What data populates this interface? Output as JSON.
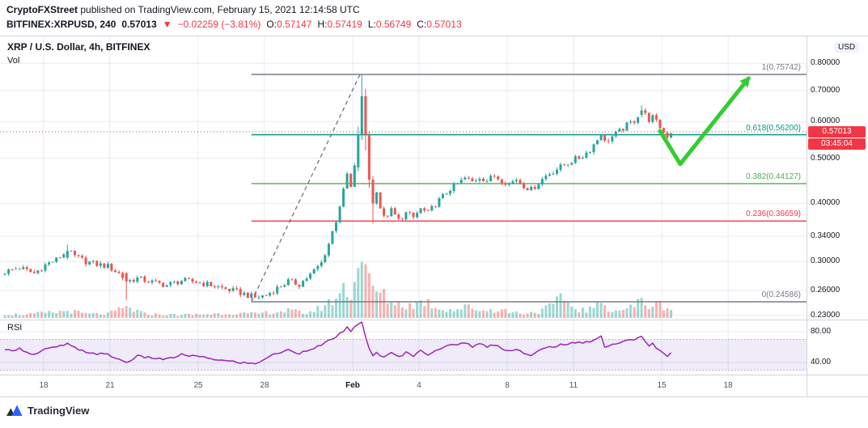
{
  "header": {
    "publisher": "CryptoFXStreet",
    "publish_info": " published on TradingView.com, February 15, 2021 12:14:58 UTC",
    "symbol": "BITFINEX:XRPUSD, 240",
    "last_price": "0.57013",
    "change_icon": "▼",
    "change": "−0.02259 (−3.81%)",
    "ohlc": [
      {
        "label": "O:",
        "value": "0.57147"
      },
      {
        "label": "H:",
        "value": "0.57419"
      },
      {
        "label": "L:",
        "value": "0.56749"
      },
      {
        "label": "C:",
        "value": "0.57013"
      }
    ]
  },
  "chart": {
    "title": "XRP / U.S. Dollar, 4h, BITFINEX",
    "vol_label": "Vol",
    "rsi_label": "RSI",
    "currency_label": "USD",
    "price_badge": "0.57013",
    "countdown": "03:45:04"
  },
  "footer": {
    "brand": "TradingView"
  },
  "colors": {
    "candle_up": "#26a69a",
    "candle_down": "#ef5350",
    "vol_up": "rgba(38,166,154,0.45)",
    "vol_down": "rgba(239,83,80,0.45)",
    "grid": "#e8ebf2",
    "separator": "#d1d4dc",
    "price_line": "#f23645",
    "badge_bg": "#f23645",
    "trendline": "#787b86",
    "arrow": "#32cd32",
    "rsi_line": "#9c27b0",
    "rsi_band_fill": "rgba(126,87,194,0.12)",
    "rsi_band_edge": "#d1a3e0",
    "axis_text": "#131722"
  },
  "chart_data": {
    "type": "candlestick",
    "symbol": "BITFINEX:XRPUSD",
    "interval": "4h",
    "scale": "log",
    "current_price": 0.57013,
    "y_ticks": [
      {
        "label": "0.80000",
        "value": 0.8
      },
      {
        "label": "0.70000",
        "value": 0.7
      },
      {
        "label": "0.60000",
        "value": 0.6
      },
      {
        "label": "0.50000",
        "value": 0.5
      },
      {
        "label": "0.40000",
        "value": 0.4
      },
      {
        "label": "0.34000",
        "value": 0.34
      },
      {
        "label": "0.30000",
        "value": 0.3
      },
      {
        "label": "0.26000",
        "value": 0.26
      },
      {
        "label": "0.23000",
        "value": 0.23
      }
    ],
    "x_ticks": [
      {
        "label": "18",
        "i": 10.5
      },
      {
        "label": "21",
        "i": 28.5
      },
      {
        "label": "25",
        "i": 52.5
      },
      {
        "label": "28",
        "i": 70.5
      },
      {
        "label": "Feb",
        "i": 94.5,
        "major": true
      },
      {
        "label": "4",
        "i": 112.5
      },
      {
        "label": "8",
        "i": 136.5
      },
      {
        "label": "11",
        "i": 154.5
      },
      {
        "label": "15",
        "i": 178.5
      },
      {
        "label": "18",
        "i": 196.5
      }
    ],
    "fib_levels": [
      {
        "label": "1(0.75742)",
        "value": 0.75742,
        "color": "#787b86"
      },
      {
        "label": "0.618(0.56200)",
        "value": 0.562,
        "color": "#009688"
      },
      {
        "label": "0.382(0.44127)",
        "value": 0.44127,
        "color": "#4caf50"
      },
      {
        "label": "0.236(0.36659)",
        "value": 0.36659,
        "color": "#f23645"
      },
      {
        "label": "0(0.24586)",
        "value": 0.24586,
        "color": "#787b86"
      }
    ],
    "rsi_ticks": [
      {
        "label": "80.00",
        "value": 80
      },
      {
        "label": "40.00",
        "value": 40
      }
    ],
    "rsi_band": [
      30,
      70
    ],
    "close_anchors": [
      [
        0,
        0.285
      ],
      [
        4,
        0.291
      ],
      [
        8,
        0.283
      ],
      [
        11,
        0.295
      ],
      [
        14,
        0.303
      ],
      [
        17,
        0.316
      ],
      [
        19,
        0.308
      ],
      [
        22,
        0.3
      ],
      [
        25,
        0.296
      ],
      [
        28,
        0.293
      ],
      [
        31,
        0.283
      ],
      [
        33,
        0.272
      ],
      [
        36,
        0.276
      ],
      [
        40,
        0.271
      ],
      [
        44,
        0.267
      ],
      [
        48,
        0.273
      ],
      [
        52,
        0.271
      ],
      [
        56,
        0.267
      ],
      [
        60,
        0.262
      ],
      [
        64,
        0.257
      ],
      [
        68,
        0.251
      ],
      [
        71,
        0.254
      ],
      [
        74,
        0.263
      ],
      [
        77,
        0.272
      ],
      [
        80,
        0.268
      ],
      [
        83,
        0.281
      ],
      [
        86,
        0.298
      ],
      [
        88,
        0.328
      ],
      [
        90,
        0.368
      ],
      [
        92,
        0.425
      ],
      [
        93,
        0.462
      ],
      [
        94,
        0.432
      ],
      [
        95,
        0.478
      ],
      [
        96,
        0.56
      ],
      [
        97,
        0.68
      ],
      [
        98,
        0.56
      ],
      [
        99,
        0.45
      ],
      [
        100,
        0.4
      ],
      [
        101,
        0.428
      ],
      [
        102,
        0.392
      ],
      [
        103,
        0.372
      ],
      [
        105,
        0.386
      ],
      [
        107,
        0.368
      ],
      [
        109,
        0.381
      ],
      [
        111,
        0.373
      ],
      [
        113,
        0.389
      ],
      [
        115,
        0.381
      ],
      [
        117,
        0.399
      ],
      [
        119,
        0.414
      ],
      [
        121,
        0.43
      ],
      [
        123,
        0.441
      ],
      [
        125,
        0.453
      ],
      [
        127,
        0.445
      ],
      [
        129,
        0.456
      ],
      [
        131,
        0.448
      ],
      [
        133,
        0.458
      ],
      [
        135,
        0.449
      ],
      [
        137,
        0.441
      ],
      [
        139,
        0.451
      ],
      [
        141,
        0.437
      ],
      [
        143,
        0.428
      ],
      [
        145,
        0.443
      ],
      [
        147,
        0.459
      ],
      [
        149,
        0.469
      ],
      [
        151,
        0.479
      ],
      [
        153,
        0.489
      ],
      [
        155,
        0.498
      ],
      [
        157,
        0.506
      ],
      [
        159,
        0.522
      ],
      [
        161,
        0.549
      ],
      [
        162,
        0.566
      ],
      [
        163,
        0.541
      ],
      [
        165,
        0.557
      ],
      [
        167,
        0.571
      ],
      [
        169,
        0.589
      ],
      [
        171,
        0.603
      ],
      [
        172,
        0.618
      ],
      [
        173,
        0.634
      ],
      [
        174,
        0.62
      ],
      [
        175,
        0.606
      ],
      [
        176,
        0.613
      ],
      [
        177,
        0.598
      ],
      [
        178,
        0.584
      ],
      [
        179,
        0.568
      ],
      [
        180,
        0.559
      ],
      [
        181,
        0.57
      ]
    ],
    "special_candles": {
      "17": [
        0.306,
        0.326,
        0.303,
        0.316
      ],
      "33": [
        0.283,
        0.285,
        0.248,
        0.272
      ],
      "96": [
        0.478,
        0.585,
        0.47,
        0.56
      ],
      "97": [
        0.56,
        0.75742,
        0.548,
        0.68
      ],
      "98": [
        0.68,
        0.706,
        0.52,
        0.56
      ],
      "99": [
        0.56,
        0.572,
        0.432,
        0.45
      ],
      "100": [
        0.45,
        0.458,
        0.362,
        0.4
      ],
      "173": [
        0.62,
        0.65,
        0.612,
        0.634
      ]
    },
    "volume_anchors": [
      [
        0,
        5
      ],
      [
        6,
        4
      ],
      [
        10,
        6
      ],
      [
        14,
        7
      ],
      [
        17,
        9
      ],
      [
        22,
        5
      ],
      [
        28,
        5
      ],
      [
        33,
        13
      ],
      [
        38,
        5
      ],
      [
        44,
        4
      ],
      [
        50,
        4
      ],
      [
        56,
        5
      ],
      [
        62,
        6
      ],
      [
        68,
        5
      ],
      [
        72,
        7
      ],
      [
        77,
        9
      ],
      [
        82,
        6
      ],
      [
        85,
        11
      ],
      [
        88,
        18
      ],
      [
        90,
        26
      ],
      [
        92,
        36
      ],
      [
        94,
        32
      ],
      [
        95,
        46
      ],
      [
        96,
        62
      ],
      [
        97,
        92
      ],
      [
        98,
        58
      ],
      [
        99,
        42
      ],
      [
        100,
        36
      ],
      [
        102,
        30
      ],
      [
        104,
        24
      ],
      [
        106,
        19
      ],
      [
        110,
        15
      ],
      [
        114,
        21
      ],
      [
        118,
        12
      ],
      [
        122,
        10
      ],
      [
        126,
        14
      ],
      [
        130,
        9
      ],
      [
        134,
        11
      ],
      [
        138,
        7
      ],
      [
        142,
        6
      ],
      [
        146,
        9
      ],
      [
        150,
        19
      ],
      [
        152,
        26
      ],
      [
        154,
        13
      ],
      [
        158,
        9
      ],
      [
        162,
        17
      ],
      [
        166,
        9
      ],
      [
        170,
        13
      ],
      [
        173,
        21
      ],
      [
        175,
        15
      ],
      [
        178,
        17
      ],
      [
        181,
        11
      ]
    ],
    "rsi_anchors": [
      [
        0,
        55
      ],
      [
        4,
        58
      ],
      [
        8,
        50
      ],
      [
        11,
        57
      ],
      [
        14,
        60
      ],
      [
        17,
        64
      ],
      [
        20,
        56
      ],
      [
        24,
        52
      ],
      [
        28,
        50
      ],
      [
        31,
        44
      ],
      [
        33,
        40
      ],
      [
        36,
        48
      ],
      [
        40,
        46
      ],
      [
        44,
        44
      ],
      [
        48,
        50
      ],
      [
        52,
        48
      ],
      [
        56,
        45
      ],
      [
        60,
        42
      ],
      [
        64,
        40
      ],
      [
        68,
        38
      ],
      [
        71,
        46
      ],
      [
        74,
        52
      ],
      [
        77,
        56
      ],
      [
        80,
        52
      ],
      [
        83,
        58
      ],
      [
        86,
        62
      ],
      [
        88,
        68
      ],
      [
        90,
        74
      ],
      [
        92,
        80
      ],
      [
        93,
        85
      ],
      [
        94,
        79
      ],
      [
        95,
        87
      ],
      [
        96,
        91
      ],
      [
        97,
        93
      ],
      [
        98,
        72
      ],
      [
        99,
        58
      ],
      [
        100,
        48
      ],
      [
        101,
        54
      ],
      [
        103,
        46
      ],
      [
        105,
        52
      ],
      [
        107,
        47
      ],
      [
        109,
        53
      ],
      [
        111,
        49
      ],
      [
        113,
        55
      ],
      [
        115,
        51
      ],
      [
        117,
        56
      ],
      [
        119,
        59
      ],
      [
        121,
        62
      ],
      [
        123,
        64
      ],
      [
        125,
        66
      ],
      [
        127,
        61
      ],
      [
        129,
        64
      ],
      [
        131,
        61
      ],
      [
        133,
        63
      ],
      [
        135,
        59
      ],
      [
        137,
        55
      ],
      [
        139,
        58
      ],
      [
        141,
        52
      ],
      [
        143,
        48
      ],
      [
        145,
        55
      ],
      [
        147,
        59
      ],
      [
        149,
        61
      ],
      [
        151,
        63
      ],
      [
        153,
        64
      ],
      [
        155,
        65
      ],
      [
        157,
        66
      ],
      [
        159,
        68
      ],
      [
        161,
        71
      ],
      [
        162,
        74
      ],
      [
        163,
        61
      ],
      [
        165,
        63
      ],
      [
        167,
        66
      ],
      [
        169,
        68
      ],
      [
        171,
        70
      ],
      [
        172,
        72
      ],
      [
        173,
        75
      ],
      [
        174,
        67
      ],
      [
        175,
        61
      ],
      [
        176,
        64
      ],
      [
        177,
        59
      ],
      [
        178,
        55
      ],
      [
        179,
        51
      ],
      [
        180,
        49
      ],
      [
        181,
        52
      ]
    ],
    "trendline": {
      "points": [
        [
          67,
          0.2459
        ],
        [
          96.5,
          0.7574
        ]
      ],
      "style": "dashed"
    },
    "annotation_arrow": {
      "points": [
        [
          178,
          0.572
        ],
        [
          183.5,
          0.486
        ],
        [
          202,
          0.742
        ]
      ]
    }
  }
}
